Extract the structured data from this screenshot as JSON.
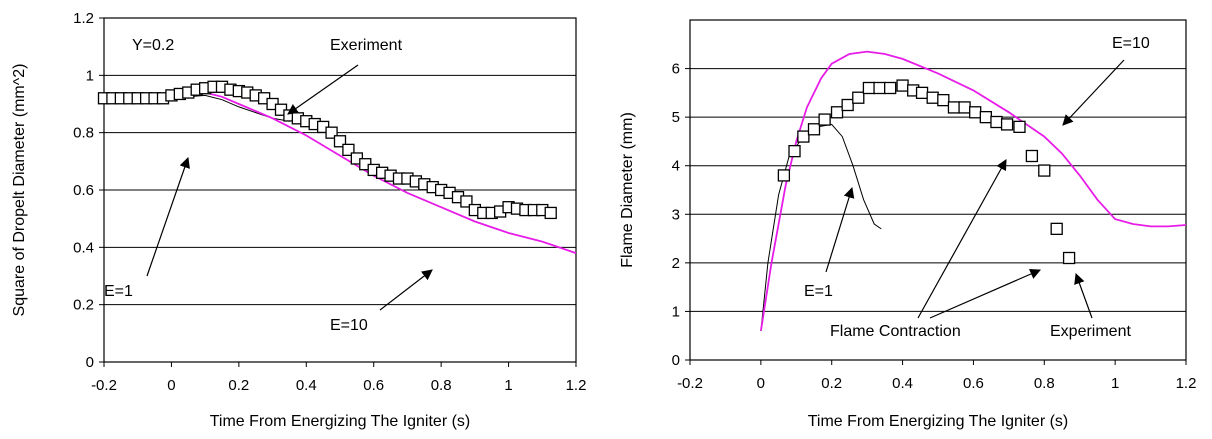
{
  "chart_data": [
    {
      "type": "scatter",
      "title": "",
      "xlabel": "Time From Energizing The Igniter (s)",
      "ylabel": "Square of Dropelt Diameter (mm^2)",
      "xlim": [
        -0.2,
        1.2
      ],
      "ylim": [
        0,
        1.2
      ],
      "xticks": [
        "-0.2",
        "0",
        "0.2",
        "0.4",
        "0.6",
        "0.8",
        "1",
        "1.2"
      ],
      "yticks": [
        "0",
        "0.2",
        "0.4",
        "0.6",
        "0.8",
        "1",
        "1.2"
      ],
      "grid": "horizontal",
      "series": [
        {
          "name": "Exeriment",
          "kind": "markers",
          "marker": "square",
          "color": "#000000",
          "x": [
            -0.2,
            -0.175,
            -0.15,
            -0.125,
            -0.1,
            -0.075,
            -0.05,
            -0.025,
            0.0,
            0.025,
            0.05,
            0.075,
            0.1,
            0.125,
            0.15,
            0.175,
            0.2,
            0.225,
            0.25,
            0.275,
            0.3,
            0.325,
            0.35,
            0.375,
            0.4,
            0.425,
            0.45,
            0.475,
            0.5,
            0.525,
            0.55,
            0.575,
            0.6,
            0.625,
            0.65,
            0.675,
            0.7,
            0.725,
            0.75,
            0.775,
            0.8,
            0.825,
            0.85,
            0.875,
            0.9,
            0.925,
            0.95,
            0.975,
            1.0,
            1.025,
            1.05,
            1.075,
            1.1,
            1.125
          ],
          "y": [
            0.92,
            0.92,
            0.92,
            0.92,
            0.92,
            0.92,
            0.92,
            0.92,
            0.93,
            0.935,
            0.94,
            0.95,
            0.955,
            0.96,
            0.96,
            0.95,
            0.945,
            0.94,
            0.93,
            0.92,
            0.9,
            0.88,
            0.86,
            0.85,
            0.84,
            0.83,
            0.82,
            0.8,
            0.77,
            0.74,
            0.71,
            0.69,
            0.67,
            0.66,
            0.65,
            0.64,
            0.64,
            0.63,
            0.62,
            0.61,
            0.6,
            0.59,
            0.575,
            0.56,
            0.53,
            0.52,
            0.52,
            0.525,
            0.54,
            0.535,
            0.53,
            0.53,
            0.53,
            0.52
          ]
        },
        {
          "name": "E=1",
          "kind": "line",
          "color": "#000000",
          "x": [
            -0.2,
            0.0,
            0.05,
            0.1,
            0.15,
            0.2,
            0.25,
            0.3,
            0.35
          ],
          "y": [
            0.92,
            0.92,
            0.925,
            0.93,
            0.915,
            0.89,
            0.87,
            0.85,
            0.84
          ]
        },
        {
          "name": "E=10",
          "kind": "line",
          "color": "#e81ce8",
          "x": [
            0.0,
            0.05,
            0.1,
            0.15,
            0.2,
            0.3,
            0.4,
            0.5,
            0.6,
            0.7,
            0.8,
            0.9,
            1.0,
            1.1,
            1.2
          ],
          "y": [
            0.92,
            0.935,
            0.94,
            0.925,
            0.9,
            0.85,
            0.79,
            0.72,
            0.65,
            0.59,
            0.54,
            0.49,
            0.45,
            0.42,
            0.38
          ]
        }
      ],
      "annotations": [
        {
          "text": "Y=0.2"
        },
        {
          "text": "Exeriment"
        },
        {
          "text": "E=1"
        },
        {
          "text": "E=10"
        }
      ]
    },
    {
      "type": "scatter",
      "title": "",
      "xlabel": "Time From Energizing The Igniter (s)",
      "ylabel": "Flame Diameter (mm)",
      "xlim": [
        -0.2,
        1.2
      ],
      "ylim": [
        0,
        7
      ],
      "xticks": [
        "-0.2",
        "0",
        "0.2",
        "0.4",
        "0.6",
        "0.8",
        "1",
        "1.2"
      ],
      "yticks": [
        "0",
        "1",
        "2",
        "3",
        "4",
        "5",
        "6"
      ],
      "grid": "horizontal",
      "series": [
        {
          "name": "Experiment",
          "kind": "markers",
          "marker": "square",
          "color": "#000000",
          "x": [
            0.065,
            0.095,
            0.12,
            0.15,
            0.18,
            0.215,
            0.245,
            0.275,
            0.305,
            0.335,
            0.365,
            0.4,
            0.43,
            0.455,
            0.485,
            0.515,
            0.545,
            0.575,
            0.605,
            0.635,
            0.665,
            0.695,
            0.73,
            0.765,
            0.8,
            0.835,
            0.87
          ],
          "y": [
            3.8,
            4.3,
            4.6,
            4.75,
            4.95,
            5.1,
            5.25,
            5.4,
            5.6,
            5.6,
            5.6,
            5.65,
            5.55,
            5.5,
            5.4,
            5.35,
            5.2,
            5.2,
            5.1,
            5.0,
            4.9,
            4.85,
            4.8,
            4.2,
            3.9,
            2.7,
            2.1
          ]
        },
        {
          "name": "E=1",
          "kind": "line",
          "color": "#000000",
          "x": [
            0.0,
            0.02,
            0.05,
            0.08,
            0.12,
            0.16,
            0.2,
            0.23,
            0.26,
            0.29,
            0.32,
            0.34
          ],
          "y": [
            0.6,
            2.0,
            3.4,
            4.2,
            4.6,
            4.8,
            4.85,
            4.6,
            4.0,
            3.3,
            2.8,
            2.7
          ]
        },
        {
          "name": "E=10",
          "kind": "line",
          "color": "#e81ce8",
          "x": [
            0.0,
            0.03,
            0.07,
            0.1,
            0.13,
            0.17,
            0.2,
            0.25,
            0.3,
            0.35,
            0.4,
            0.5,
            0.6,
            0.7,
            0.8,
            0.85,
            0.9,
            0.95,
            1.0,
            1.05,
            1.1,
            1.15,
            1.2
          ],
          "y": [
            0.6,
            2.0,
            3.6,
            4.5,
            5.2,
            5.8,
            6.1,
            6.3,
            6.35,
            6.3,
            6.2,
            5.9,
            5.55,
            5.1,
            4.6,
            4.25,
            3.8,
            3.3,
            2.9,
            2.8,
            2.75,
            2.75,
            2.78
          ]
        }
      ],
      "annotations": [
        {
          "text": "E=10"
        },
        {
          "text": "E=1"
        },
        {
          "text": "Flame Contraction"
        },
        {
          "text": "Experiment"
        }
      ]
    }
  ]
}
